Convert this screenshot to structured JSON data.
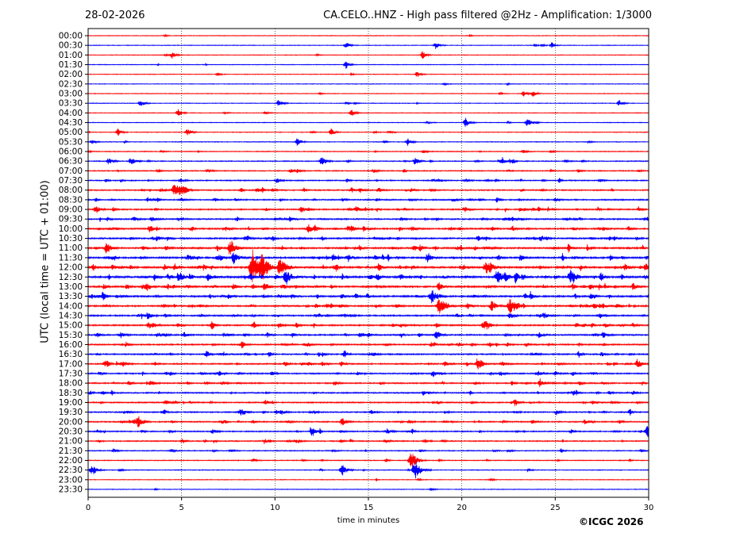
{
  "header": {
    "date": "28-02-2026",
    "title": "CA.CELO..HNZ - High pass filtered @2Hz - Amplification: 1/3000"
  },
  "footer": {
    "copyright": "©ICGC 2026"
  },
  "chart_data": {
    "type": "line",
    "title": "CA.CELO..HNZ - High pass filtered @2Hz - Amplification: 1/3000",
    "xlabel": "time in minutes",
    "ylabel": "UTC (local time = UTC + 01:00)",
    "xlim": [
      0,
      30
    ],
    "x_ticks": [
      0,
      5,
      10,
      15,
      20,
      25,
      30
    ],
    "grid": "vertical dotted at each x tick",
    "row_labels": [
      "00:00",
      "00:30",
      "01:00",
      "01:30",
      "02:00",
      "02:30",
      "03:00",
      "03:30",
      "04:00",
      "04:30",
      "05:00",
      "05:30",
      "06:00",
      "06:30",
      "07:00",
      "07:30",
      "08:00",
      "08:30",
      "09:00",
      "09:30",
      "10:00",
      "10:30",
      "11:00",
      "11:30",
      "12:00",
      "12:30",
      "13:00",
      "13:30",
      "14:00",
      "14:30",
      "15:00",
      "15:30",
      "16:00",
      "16:30",
      "17:00",
      "17:30",
      "18:00",
      "18:30",
      "19:00",
      "19:30",
      "20:00",
      "20:30",
      "21:00",
      "21:30",
      "22:00",
      "22:30",
      "23:00",
      "23:30"
    ],
    "row_colors": [
      "#ff0000",
      "#0000ff"
    ],
    "activity": [
      0.03,
      0.03,
      0.03,
      0.04,
      0.03,
      0.03,
      0.04,
      0.05,
      0.05,
      0.06,
      0.07,
      0.09,
      0.15,
      0.22,
      0.25,
      0.3,
      0.35,
      0.38,
      0.42,
      0.45,
      0.5,
      0.55,
      0.6,
      0.65,
      0.7,
      0.75,
      0.65,
      0.6,
      0.55,
      0.5,
      0.5,
      0.48,
      0.45,
      0.45,
      0.45,
      0.42,
      0.42,
      0.4,
      0.4,
      0.38,
      0.38,
      0.35,
      0.3,
      0.2,
      0.15,
      0.1,
      0.05,
      0.03
    ],
    "events": [
      {
        "row": 1,
        "t": 13.8,
        "amp": 5
      },
      {
        "row": 1,
        "t": 18.6,
        "amp": 5
      },
      {
        "row": 1,
        "t": 24.8,
        "amp": 4
      },
      {
        "row": 2,
        "t": 4.5,
        "amp": 5
      },
      {
        "row": 2,
        "t": 17.9,
        "amp": 5
      },
      {
        "row": 3,
        "t": 13.8,
        "amp": 5
      },
      {
        "row": 4,
        "t": 17.6,
        "amp": 4
      },
      {
        "row": 6,
        "t": 23.3,
        "amp": 4
      },
      {
        "row": 6,
        "t": 23.8,
        "amp": 4
      },
      {
        "row": 7,
        "t": 2.8,
        "amp": 5
      },
      {
        "row": 7,
        "t": 10.2,
        "amp": 5
      },
      {
        "row": 7,
        "t": 28.4,
        "amp": 5
      },
      {
        "row": 8,
        "t": 4.8,
        "amp": 5
      },
      {
        "row": 8,
        "t": 14.1,
        "amp": 5
      },
      {
        "row": 9,
        "t": 20.2,
        "amp": 6
      },
      {
        "row": 9,
        "t": 23.5,
        "amp": 6
      },
      {
        "row": 10,
        "t": 1.6,
        "amp": 5
      },
      {
        "row": 10,
        "t": 5.3,
        "amp": 5
      },
      {
        "row": 10,
        "t": 13.0,
        "amp": 5
      },
      {
        "row": 11,
        "t": 11.2,
        "amp": 5
      },
      {
        "row": 11,
        "t": 17.1,
        "amp": 5
      },
      {
        "row": 13,
        "t": 1.1,
        "amp": 5
      },
      {
        "row": 13,
        "t": 2.3,
        "amp": 6
      },
      {
        "row": 13,
        "t": 12.5,
        "amp": 6
      },
      {
        "row": 13,
        "t": 17.5,
        "amp": 5
      },
      {
        "row": 16,
        "t": 4.6,
        "amp": 8
      },
      {
        "row": 16,
        "t": 4.9,
        "amp": 7
      },
      {
        "row": 18,
        "t": 0.4,
        "amp": 6
      },
      {
        "row": 18,
        "t": 11.4,
        "amp": 5
      },
      {
        "row": 20,
        "t": 3.3,
        "amp": 5
      },
      {
        "row": 20,
        "t": 11.8,
        "amp": 6
      },
      {
        "row": 22,
        "t": 1.0,
        "amp": 6
      },
      {
        "row": 22,
        "t": 7.6,
        "amp": 10
      },
      {
        "row": 23,
        "t": 7.8,
        "amp": 8
      },
      {
        "row": 23,
        "t": 13.9,
        "amp": 6
      },
      {
        "row": 24,
        "t": 8.8,
        "amp": 22
      },
      {
        "row": 24,
        "t": 9.3,
        "amp": 16
      },
      {
        "row": 24,
        "t": 10.3,
        "amp": 12
      },
      {
        "row": 24,
        "t": 21.3,
        "amp": 9
      },
      {
        "row": 25,
        "t": 4.9,
        "amp": 7
      },
      {
        "row": 25,
        "t": 10.6,
        "amp": 10
      },
      {
        "row": 25,
        "t": 21.9,
        "amp": 10
      },
      {
        "row": 25,
        "t": 25.8,
        "amp": 9
      },
      {
        "row": 27,
        "t": 18.4,
        "amp": 10
      },
      {
        "row": 28,
        "t": 18.8,
        "amp": 10
      },
      {
        "row": 28,
        "t": 21.6,
        "amp": 7
      },
      {
        "row": 28,
        "t": 22.6,
        "amp": 10
      },
      {
        "row": 29,
        "t": 3.2,
        "amp": 5
      },
      {
        "row": 34,
        "t": 20.9,
        "amp": 7
      },
      {
        "row": 34,
        "t": 29.4,
        "amp": 6
      },
      {
        "row": 36,
        "t": 24.2,
        "amp": 6
      },
      {
        "row": 40,
        "t": 2.7,
        "amp": 7
      },
      {
        "row": 40,
        "t": 13.6,
        "amp": 6
      },
      {
        "row": 41,
        "t": 12.0,
        "amp": 6
      },
      {
        "row": 41,
        "t": 29.9,
        "amp": 6
      },
      {
        "row": 44,
        "t": 17.3,
        "amp": 11
      },
      {
        "row": 45,
        "t": 0.2,
        "amp": 8
      },
      {
        "row": 45,
        "t": 13.6,
        "amp": 8
      },
      {
        "row": 45,
        "t": 17.5,
        "amp": 12
      }
    ]
  }
}
